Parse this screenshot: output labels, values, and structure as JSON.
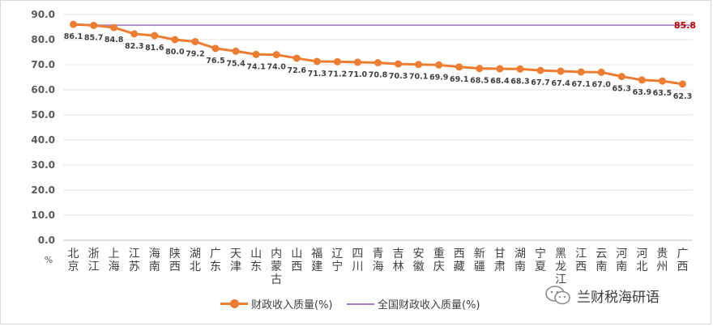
{
  "chart_data": {
    "type": "line",
    "title": "",
    "ylabel_unit": "%",
    "ylim": [
      0,
      90
    ],
    "yticks": [
      "0.0",
      "10.0",
      "20.0",
      "30.0",
      "40.0",
      "50.0",
      "60.0",
      "70.0",
      "80.0",
      "90.0"
    ],
    "categories": [
      "北京",
      "浙江",
      "上海",
      "江苏",
      "海南",
      "陕西",
      "湖北",
      "广东",
      "天津",
      "山东",
      "内蒙古",
      "山西",
      "福建",
      "辽宁",
      "四川",
      "青海",
      "吉林",
      "安徽",
      "重庆",
      "西藏",
      "新疆",
      "甘肃",
      "湖南",
      "宁夏",
      "黑龙江",
      "江西",
      "云南",
      "河南",
      "河北",
      "贵州",
      "广西"
    ],
    "series": [
      {
        "name": "财政收入质量(%)",
        "color": "#ed7d31",
        "values": [
          86.1,
          85.7,
          84.8,
          82.3,
          81.6,
          80.0,
          79.2,
          76.5,
          75.4,
          74.1,
          74.0,
          72.6,
          71.3,
          71.2,
          71.0,
          70.8,
          70.3,
          70.1,
          69.9,
          69.1,
          68.5,
          68.4,
          68.3,
          67.7,
          67.4,
          67.1,
          67.0,
          65.3,
          63.9,
          63.5,
          62.3
        ],
        "labels": [
          "86.1",
          "85.7",
          "84.8",
          "82.3",
          "81.6",
          "80.0",
          "79.2",
          "76.5",
          "75.4",
          "74.1",
          "74.0",
          "72.6",
          "71.3",
          "71.2",
          "71.0",
          "70.8",
          "70.3",
          "70.1",
          "69.9",
          "69.1",
          "68.5",
          "68.4",
          "68.3",
          "67.7",
          "67.4",
          "67.1",
          "67.0",
          "65.3",
          "63.9",
          "63.5",
          "62.3"
        ]
      },
      {
        "name": "全国财政收入质量(%)",
        "color": "#9e7cc1",
        "value": 85.8,
        "label": "85.8",
        "label_color": "#c00000"
      }
    ],
    "grid": true,
    "legend_position": "bottom"
  },
  "watermark": {
    "text": "兰财税海研语",
    "icon": "wechat-icon"
  }
}
